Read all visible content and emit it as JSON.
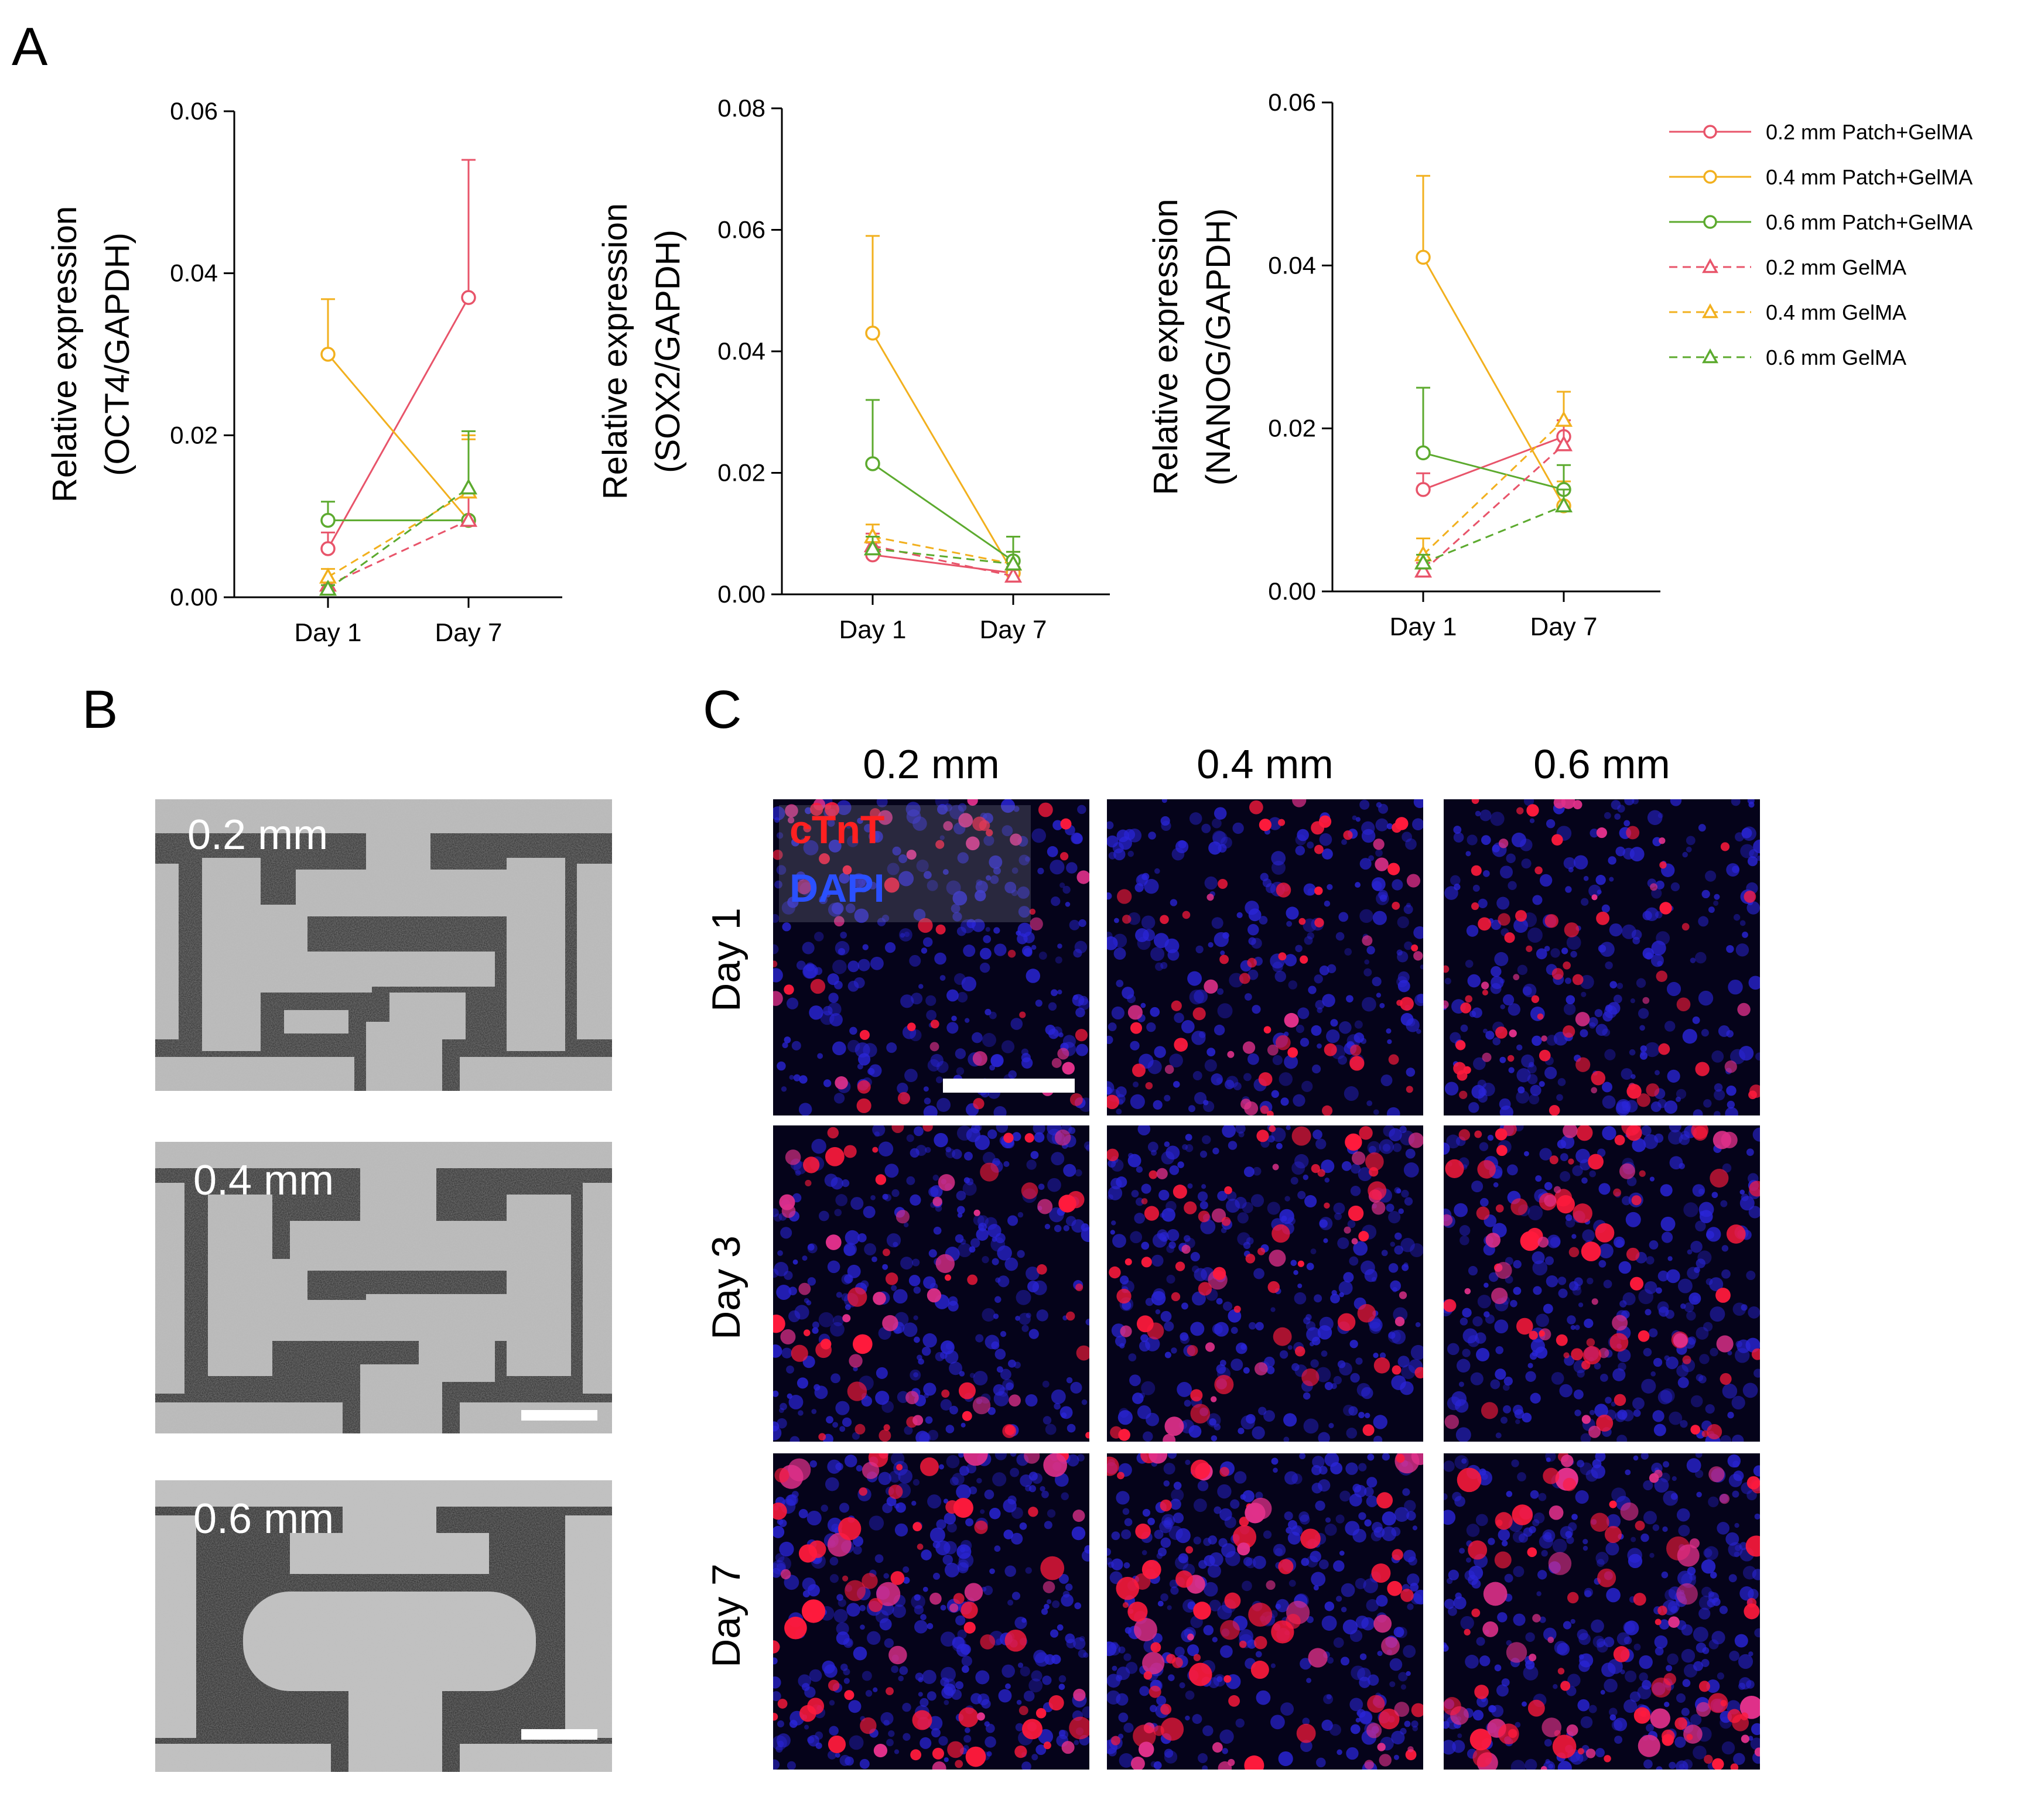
{
  "panels": {
    "a": "A",
    "b": "B",
    "c": "C"
  },
  "legend": {
    "items": [
      {
        "label": "0.2 mm Patch+GelMA",
        "color": "#e8546a",
        "dash": false,
        "marker": "circle"
      },
      {
        "label": "0.4 mm Patch+GelMA",
        "color": "#f2b01e",
        "dash": false,
        "marker": "circle"
      },
      {
        "label": "0.6 mm Patch+GelMA",
        "color": "#5caa2e",
        "dash": false,
        "marker": "circle"
      },
      {
        "label": "0.2 mm GelMA",
        "color": "#e8546a",
        "dash": true,
        "marker": "triangle"
      },
      {
        "label": "0.4 mm GelMA",
        "color": "#f2b01e",
        "dash": true,
        "marker": "triangle"
      },
      {
        "label": "0.6 mm GelMA",
        "color": "#5caa2e",
        "dash": true,
        "marker": "triangle"
      }
    ]
  },
  "chart_data": [
    {
      "type": "line",
      "ylabel": [
        "Relative expression",
        "(OCT4/GAPDH)"
      ],
      "categories": [
        "Day 1",
        "Day 7"
      ],
      "ylim": [
        0,
        0.06
      ],
      "yticks": [
        "0.00",
        "0.02",
        "0.04",
        "0.06"
      ],
      "series": [
        {
          "name": "0.2 mm Patch+GelMA",
          "values": [
            0.006,
            0.037
          ],
          "err": [
            0.002,
            0.017
          ]
        },
        {
          "name": "0.4 mm Patch+GelMA",
          "values": [
            0.03,
            0.0095
          ],
          "err": [
            0.0068,
            0.01
          ]
        },
        {
          "name": "0.6 mm Patch+GelMA",
          "values": [
            0.0095,
            0.0095
          ],
          "err": [
            0.0023,
            0.003
          ]
        },
        {
          "name": "0.2 mm GelMA",
          "values": [
            0.0015,
            0.0095
          ],
          "err": [
            0.0005,
            0.003
          ]
        },
        {
          "name": "0.4 mm GelMA",
          "values": [
            0.0025,
            0.013
          ],
          "err": [
            0.001,
            0.007
          ]
        },
        {
          "name": "0.6 mm GelMA",
          "values": [
            0.001,
            0.0135
          ],
          "err": [
            0.0005,
            0.007
          ]
        }
      ]
    },
    {
      "type": "line",
      "ylabel": [
        "Relative expression",
        "(SOX2/GAPDH)"
      ],
      "categories": [
        "Day 1",
        "Day 7"
      ],
      "ylim": [
        0,
        0.08
      ],
      "yticks": [
        "0.00",
        "0.02",
        "0.04",
        "0.06",
        "0.08"
      ],
      "series": [
        {
          "name": "0.2 mm Patch+GelMA",
          "values": [
            0.0065,
            0.0035
          ],
          "err": [
            0.002,
            0.001
          ]
        },
        {
          "name": "0.4 mm Patch+GelMA",
          "values": [
            0.043,
            0.0035
          ],
          "err": [
            0.016,
            0.002
          ]
        },
        {
          "name": "0.6 mm Patch+GelMA",
          "values": [
            0.0215,
            0.0055
          ],
          "err": [
            0.0105,
            0.004
          ]
        },
        {
          "name": "0.2 mm GelMA",
          "values": [
            0.008,
            0.003
          ],
          "err": [
            0.002,
            0.001
          ]
        },
        {
          "name": "0.4 mm GelMA",
          "values": [
            0.0095,
            0.005
          ],
          "err": [
            0.002,
            0.002
          ]
        },
        {
          "name": "0.6 mm GelMA",
          "values": [
            0.0075,
            0.005
          ],
          "err": [
            0.002,
            0.002
          ]
        }
      ]
    },
    {
      "type": "line",
      "ylabel": [
        "Relative expression",
        "(NANOG/GAPDH)"
      ],
      "categories": [
        "Day 1",
        "Day 7"
      ],
      "ylim": [
        0,
        0.06
      ],
      "yticks": [
        "0.00",
        "0.02",
        "0.04",
        "0.06"
      ],
      "series": [
        {
          "name": "0.2 mm Patch+GelMA",
          "values": [
            0.0125,
            0.019
          ],
          "err": [
            0.002,
            0.002
          ]
        },
        {
          "name": "0.4 mm Patch+GelMA",
          "values": [
            0.041,
            0.0105
          ],
          "err": [
            0.01,
            0.003
          ]
        },
        {
          "name": "0.6 mm Patch+GelMA",
          "values": [
            0.017,
            0.0125
          ],
          "err": [
            0.008,
            0.003
          ]
        },
        {
          "name": "0.2 mm GelMA",
          "values": [
            0.0025,
            0.018
          ],
          "err": [
            0.001,
            0.003
          ]
        },
        {
          "name": "0.4 mm GelMA",
          "values": [
            0.0045,
            0.021
          ],
          "err": [
            0.002,
            0.0035
          ]
        },
        {
          "name": "0.6 mm GelMA",
          "values": [
            0.0035,
            0.0105
          ],
          "err": [
            0.001,
            0.002
          ]
        }
      ]
    }
  ],
  "panel_b": {
    "labels": [
      "0.2 mm",
      "0.4 mm",
      "0.6 mm"
    ]
  },
  "panel_c": {
    "columns": [
      "0.2 mm",
      "0.4 mm",
      "0.6 mm"
    ],
    "rows": [
      "Day 1",
      "Day 3",
      "Day 7"
    ],
    "stains": {
      "ctnt": "cTnT",
      "dapi": "DAPI"
    }
  }
}
